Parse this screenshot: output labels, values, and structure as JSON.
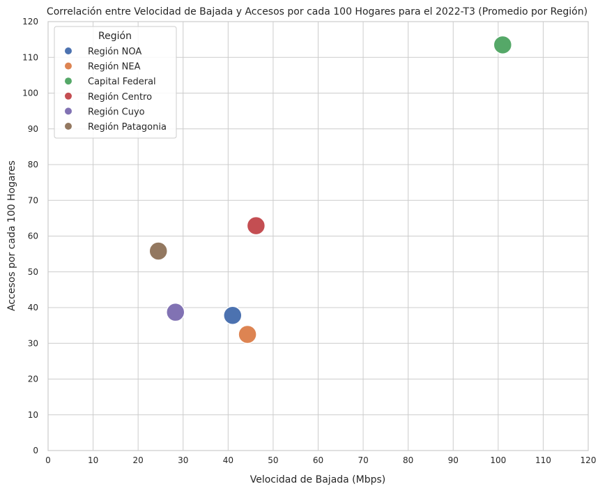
{
  "chart_data": {
    "type": "scatter",
    "title": "Correlación entre Velocidad de Bajada y Accesos por cada 100 Hogares para el 2022-T3 (Promedio por Región)",
    "xlabel": "Velocidad de Bajada (Mbps)",
    "ylabel": "Accesos por cada 100 Hogares",
    "xlim": [
      0,
      120
    ],
    "ylim": [
      0,
      120
    ],
    "xticks": [
      "0",
      "10",
      "20",
      "30",
      "40",
      "50",
      "60",
      "70",
      "80",
      "90",
      "100",
      "110",
      "120"
    ],
    "yticks": [
      "0",
      "10",
      "20",
      "30",
      "40",
      "50",
      "60",
      "70",
      "80",
      "90",
      "100",
      "110",
      "120"
    ],
    "grid": true,
    "legend": {
      "title": "Región",
      "placement": "top-left"
    },
    "series": [
      {
        "name": "Región NOA",
        "color": "#4c72b0",
        "x": [
          41.0
        ],
        "y": [
          37.8
        ]
      },
      {
        "name": "Región NEA",
        "color": "#dd8452",
        "x": [
          44.3
        ],
        "y": [
          32.5
        ]
      },
      {
        "name": "Capital Federal",
        "color": "#55a868",
        "x": [
          101.0
        ],
        "y": [
          113.5
        ]
      },
      {
        "name": "Región Centro",
        "color": "#c44e52",
        "x": [
          46.2
        ],
        "y": [
          62.9
        ]
      },
      {
        "name": "Región Cuyo",
        "color": "#8172b3",
        "x": [
          28.3
        ],
        "y": [
          38.7
        ]
      },
      {
        "name": "Región Patagonia",
        "color": "#937860",
        "x": [
          24.5
        ],
        "y": [
          55.8
        ]
      }
    ]
  }
}
